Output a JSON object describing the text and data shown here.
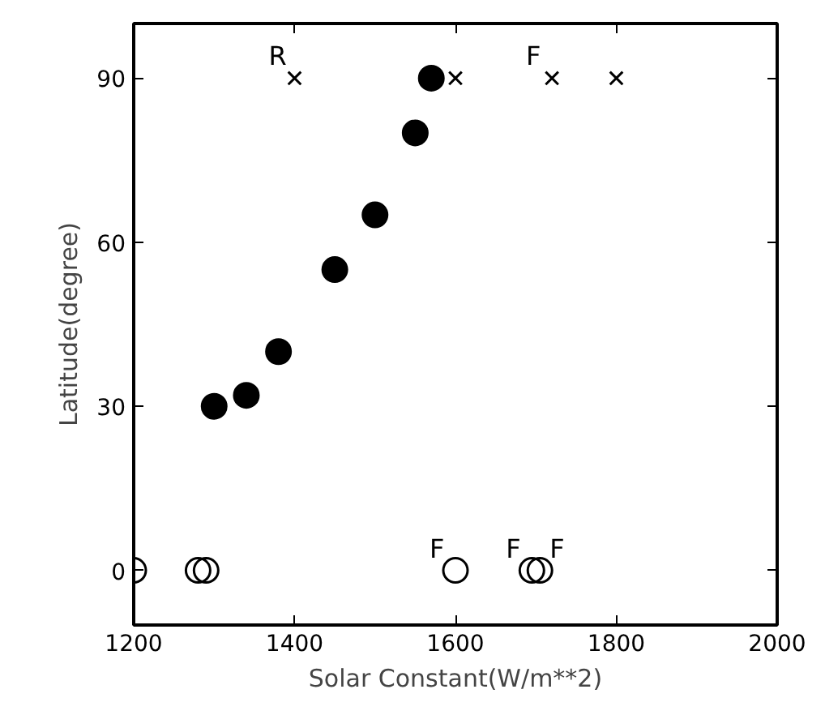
{
  "chart_data": {
    "type": "scatter",
    "xlabel": "Solar Constant(W/m**2)",
    "ylabel": "Latitude(degree)",
    "xlim": [
      1200,
      2000
    ],
    "ylim": [
      -10,
      100
    ],
    "xticks": [
      1200,
      1400,
      1600,
      1800,
      2000
    ],
    "yticks": [
      0,
      30,
      60,
      90
    ],
    "grid": false,
    "series": [
      {
        "color": "#000000",
        "marker": "circle",
        "x": [
          1300,
          1340,
          1380,
          1450,
          1500,
          1550,
          1570
        ],
        "values": [
          30,
          32,
          40,
          55,
          65,
          80,
          90
        ]
      },
      {
        "color": "#000000",
        "marker": "cross",
        "x": [
          1400,
          1600,
          1720,
          1800
        ],
        "values": [
          90,
          90,
          90,
          90
        ]
      },
      {
        "color": "#000000",
        "marker": "circle",
        "x": [
          1200,
          1280,
          1290,
          1600,
          1695,
          1705
        ],
        "values": [
          0,
          0,
          0,
          0,
          0,
          0
        ]
      }
    ],
    "annotations": [
      {
        "text": "R",
        "x": 1400,
        "y": 90
      },
      {
        "text": "F",
        "x": 1720,
        "y": 90
      },
      {
        "text": "F",
        "x": 1600,
        "y": 0
      },
      {
        "text": "F",
        "x": 1695,
        "y": 0
      },
      {
        "text": "F",
        "x": 1705,
        "y": 0
      }
    ]
  }
}
